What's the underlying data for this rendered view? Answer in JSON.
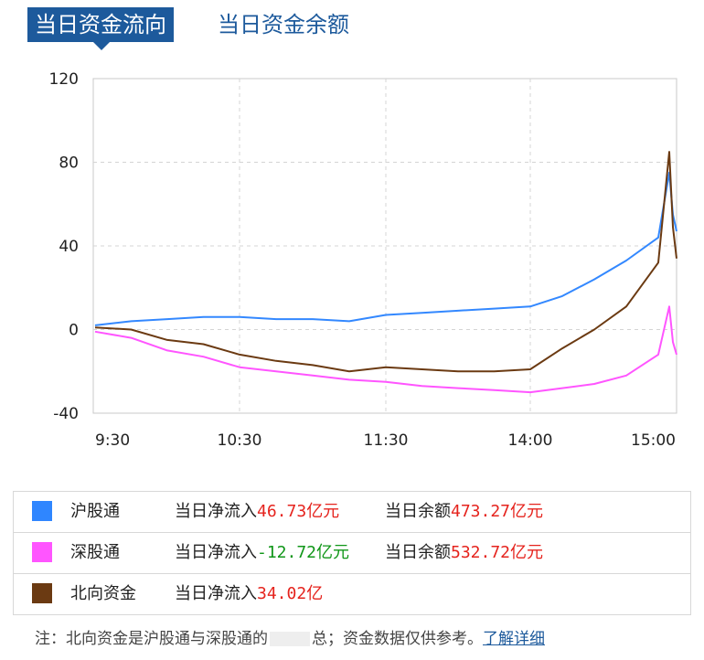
{
  "tabs": [
    {
      "label": "当日资金流向",
      "active": true
    },
    {
      "label": "当日资金余额",
      "active": false
    }
  ],
  "chart_data": {
    "type": "line",
    "y_ticks": [
      "120",
      "80",
      "40",
      "0",
      "-40"
    ],
    "ylim": [
      -40,
      120
    ],
    "x_ticks": [
      "9:30",
      "10:30",
      "11:30",
      "14:00",
      "15:00"
    ],
    "grid": true,
    "series": [
      {
        "name": "沪股通",
        "color": "#3388ff",
        "x": [
          "9:30",
          "9:45",
          "10:00",
          "10:15",
          "10:30",
          "10:45",
          "11:00",
          "11:15",
          "11:30",
          "13:15",
          "13:30",
          "13:45",
          "14:00",
          "14:15",
          "14:30",
          "14:45",
          "15:00",
          "15:03",
          "15:04",
          "15:05"
        ],
        "values": [
          2,
          4,
          5,
          6,
          6,
          5,
          5,
          4,
          7,
          8,
          9,
          10,
          11,
          16,
          24,
          33,
          44,
          75,
          55,
          47
        ]
      },
      {
        "name": "深股通",
        "color": "#ff55ff",
        "x": [
          "9:30",
          "9:45",
          "10:00",
          "10:15",
          "10:30",
          "10:45",
          "11:00",
          "11:15",
          "11:30",
          "13:15",
          "13:30",
          "13:45",
          "14:00",
          "14:15",
          "14:30",
          "14:45",
          "15:00",
          "15:03",
          "15:04",
          "15:05"
        ],
        "values": [
          -1,
          -4,
          -10,
          -13,
          -18,
          -20,
          -22,
          -24,
          -25,
          -27,
          -28,
          -29,
          -30,
          -28,
          -26,
          -22,
          -12,
          11,
          -6,
          -12
        ]
      },
      {
        "name": "北向资金",
        "color": "#6b3a12",
        "x": [
          "9:30",
          "9:45",
          "10:00",
          "10:15",
          "10:30",
          "10:45",
          "11:00",
          "11:15",
          "11:30",
          "13:15",
          "13:30",
          "13:45",
          "14:00",
          "14:15",
          "14:30",
          "14:45",
          "15:00",
          "15:03",
          "15:04",
          "15:05"
        ],
        "values": [
          1,
          0,
          -5,
          -7,
          -12,
          -15,
          -17,
          -20,
          -18,
          -19,
          -20,
          -20,
          -19,
          -9,
          0,
          11,
          32,
          85,
          49,
          34
        ]
      }
    ]
  },
  "legend": [
    {
      "name": "沪股通",
      "color": "#2f86ff",
      "flow_label": "当日净流入",
      "flow_value": "46.73",
      "flow_unit": "亿元",
      "flow_color": "red",
      "balance_label": "当日余额",
      "balance_value": "473.27",
      "balance_unit": "亿元"
    },
    {
      "name": "深股通",
      "color": "#ff55ff",
      "flow_label": "当日净流入",
      "flow_value": "-12.72",
      "flow_unit": "亿元",
      "flow_color": "green",
      "balance_label": "当日余额",
      "balance_value": "532.72",
      "balance_unit": "亿元"
    },
    {
      "name": "北向资金",
      "color": "#6b3a12",
      "flow_label": "当日净流入",
      "flow_value": "34.02",
      "flow_unit": "亿",
      "flow_color": "red"
    }
  ],
  "note": {
    "text": "注：北向资金是沪股通与深股通的",
    "text2": "总；资金数据仅供参考。",
    "link": "了解详细"
  }
}
